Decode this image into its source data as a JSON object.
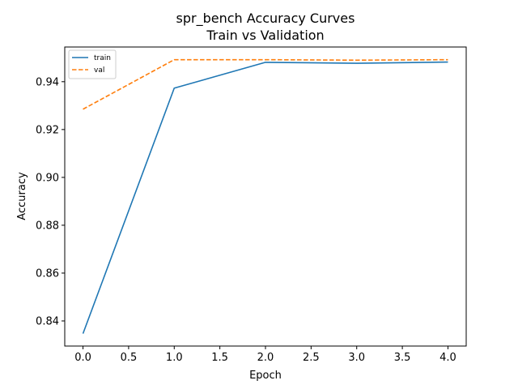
{
  "chart_data": {
    "type": "line",
    "title_line1": "spr_bench Accuracy Curves",
    "title_line2": "Train vs Validation",
    "xlabel": "Epoch",
    "ylabel": "Accuracy",
    "x": [
      0,
      1,
      2,
      3,
      4
    ],
    "xlim": [
      -0.2,
      4.2
    ],
    "ylim": [
      0.8295,
      0.9545
    ],
    "xticks": [
      0.0,
      0.5,
      1.0,
      1.5,
      2.0,
      2.5,
      3.0,
      3.5,
      4.0
    ],
    "xtick_labels": [
      "0.0",
      "0.5",
      "1.0",
      "1.5",
      "2.0",
      "2.5",
      "3.0",
      "3.5",
      "4.0"
    ],
    "yticks": [
      0.84,
      0.86,
      0.88,
      0.9,
      0.92,
      0.94
    ],
    "ytick_labels": [
      "0.84",
      "0.86",
      "0.88",
      "0.90",
      "0.92",
      "0.94"
    ],
    "grid": false,
    "legend_position": "upper left",
    "series": [
      {
        "name": "train",
        "values": [
          0.8347,
          0.9373,
          0.9481,
          0.9477,
          0.9482
        ],
        "color": "#1f77b4",
        "dash": "solid"
      },
      {
        "name": "val",
        "values": [
          0.9285,
          0.9492,
          0.9492,
          0.949,
          0.9492
        ],
        "color": "#ff7f0e",
        "dash": "dashed"
      }
    ]
  }
}
